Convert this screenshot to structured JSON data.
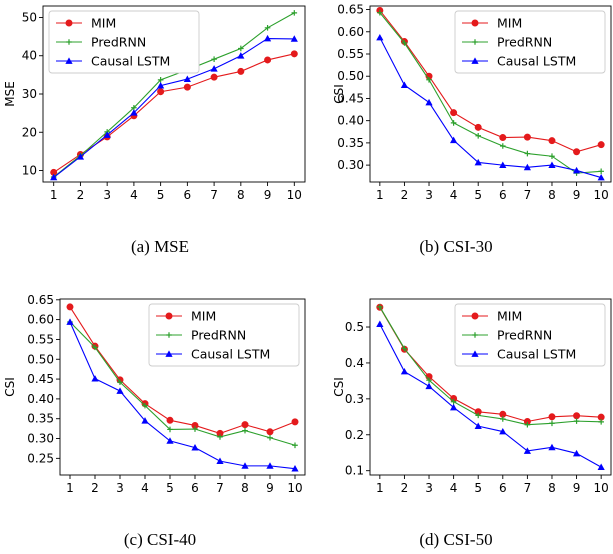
{
  "chart_data": [
    {
      "type": "line",
      "caption": "(a) MSE",
      "xlabel": "",
      "ylabel": "MSE",
      "x": [
        1,
        2,
        3,
        4,
        5,
        6,
        7,
        8,
        9,
        10
      ],
      "ylim": [
        7,
        53
      ],
      "yticks": [
        10,
        20,
        30,
        40,
        50
      ],
      "ytick_labels": [
        "10",
        "20",
        "30",
        "40",
        "50"
      ],
      "legend": "top-left",
      "series": [
        {
          "name": "MIM",
          "color": "#e41a1c",
          "marker": "circle",
          "values": [
            9.5,
            14.2,
            18.8,
            24.3,
            30.6,
            31.8,
            34.4,
            35.9,
            38.9,
            40.5
          ]
        },
        {
          "name": "PredRNN",
          "color": "#2ca02c",
          "marker": "plus",
          "values": [
            8.3,
            13.9,
            20.1,
            26.4,
            33.7,
            36.3,
            39.1,
            41.9,
            47.3,
            51.2
          ]
        },
        {
          "name": "Causal LSTM",
          "color": "#0000ff",
          "marker": "triangle",
          "values": [
            8.2,
            13.6,
            19.3,
            25.1,
            32.2,
            33.9,
            36.6,
            40.0,
            44.5,
            44.4
          ]
        }
      ]
    },
    {
      "type": "line",
      "caption": "(b) CSI-30",
      "xlabel": "",
      "ylabel": "CSI",
      "x": [
        1,
        2,
        3,
        4,
        5,
        6,
        7,
        8,
        9,
        10
      ],
      "ylim": [
        0.262,
        0.658
      ],
      "yticks": [
        0.3,
        0.35,
        0.4,
        0.45,
        0.5,
        0.55,
        0.6,
        0.65
      ],
      "ytick_labels": [
        "0.30",
        "0.35",
        "0.40",
        "0.45",
        "0.50",
        "0.55",
        "0.60",
        "0.65"
      ],
      "legend": "top-right",
      "series": [
        {
          "name": "MIM",
          "color": "#e41a1c",
          "marker": "circle",
          "values": [
            0.648,
            0.578,
            0.5,
            0.418,
            0.385,
            0.362,
            0.363,
            0.355,
            0.33,
            0.346
          ]
        },
        {
          "name": "PredRNN",
          "color": "#2ca02c",
          "marker": "plus",
          "values": [
            0.643,
            0.575,
            0.492,
            0.395,
            0.366,
            0.343,
            0.326,
            0.32,
            0.282,
            0.286
          ]
        },
        {
          "name": "Causal LSTM",
          "color": "#0000ff",
          "marker": "triangle",
          "values": [
            0.587,
            0.48,
            0.441,
            0.356,
            0.306,
            0.3,
            0.295,
            0.3,
            0.288,
            0.272
          ]
        }
      ]
    },
    {
      "type": "line",
      "caption": "(c) CSI-40",
      "xlabel": "",
      "ylabel": "CSI",
      "x": [
        1,
        2,
        3,
        4,
        5,
        6,
        7,
        8,
        9,
        10
      ],
      "ylim": [
        0.208,
        0.652
      ],
      "yticks": [
        0.25,
        0.3,
        0.35,
        0.4,
        0.45,
        0.5,
        0.55,
        0.6,
        0.65
      ],
      "ytick_labels": [
        "0.25",
        "0.30",
        "0.35",
        "0.40",
        "0.45",
        "0.50",
        "0.55",
        "0.60",
        "0.65"
      ],
      "legend": "top-right",
      "series": [
        {
          "name": "MIM",
          "color": "#e41a1c",
          "marker": "circle",
          "values": [
            0.632,
            0.533,
            0.448,
            0.388,
            0.346,
            0.333,
            0.313,
            0.335,
            0.317,
            0.342
          ]
        },
        {
          "name": "PredRNN",
          "color": "#2ca02c",
          "marker": "plus",
          "values": [
            0.594,
            0.53,
            0.442,
            0.383,
            0.323,
            0.324,
            0.304,
            0.32,
            0.302,
            0.283
          ]
        },
        {
          "name": "Causal LSTM",
          "color": "#0000ff",
          "marker": "triangle",
          "values": [
            0.594,
            0.451,
            0.42,
            0.345,
            0.294,
            0.277,
            0.243,
            0.231,
            0.231,
            0.224
          ]
        }
      ]
    },
    {
      "type": "line",
      "caption": "(d) CSI-50",
      "xlabel": "",
      "ylabel": "CSI",
      "x": [
        1,
        2,
        3,
        4,
        5,
        6,
        7,
        8,
        9,
        10
      ],
      "ylim": [
        0.088,
        0.578
      ],
      "yticks": [
        0.1,
        0.2,
        0.3,
        0.4,
        0.5
      ],
      "ytick_labels": [
        "0.1",
        "0.2",
        "0.3",
        "0.4",
        "0.5"
      ],
      "legend": "top-right",
      "series": [
        {
          "name": "MIM",
          "color": "#e41a1c",
          "marker": "circle",
          "values": [
            0.555,
            0.438,
            0.362,
            0.301,
            0.264,
            0.257,
            0.237,
            0.25,
            0.253,
            0.249
          ]
        },
        {
          "name": "PredRNN",
          "color": "#2ca02c",
          "marker": "plus",
          "values": [
            0.556,
            0.44,
            0.352,
            0.292,
            0.254,
            0.244,
            0.228,
            0.232,
            0.238,
            0.236
          ]
        },
        {
          "name": "Causal LSTM",
          "color": "#0000ff",
          "marker": "triangle",
          "values": [
            0.508,
            0.376,
            0.335,
            0.276,
            0.224,
            0.209,
            0.155,
            0.165,
            0.148,
            0.11
          ]
        }
      ]
    }
  ]
}
